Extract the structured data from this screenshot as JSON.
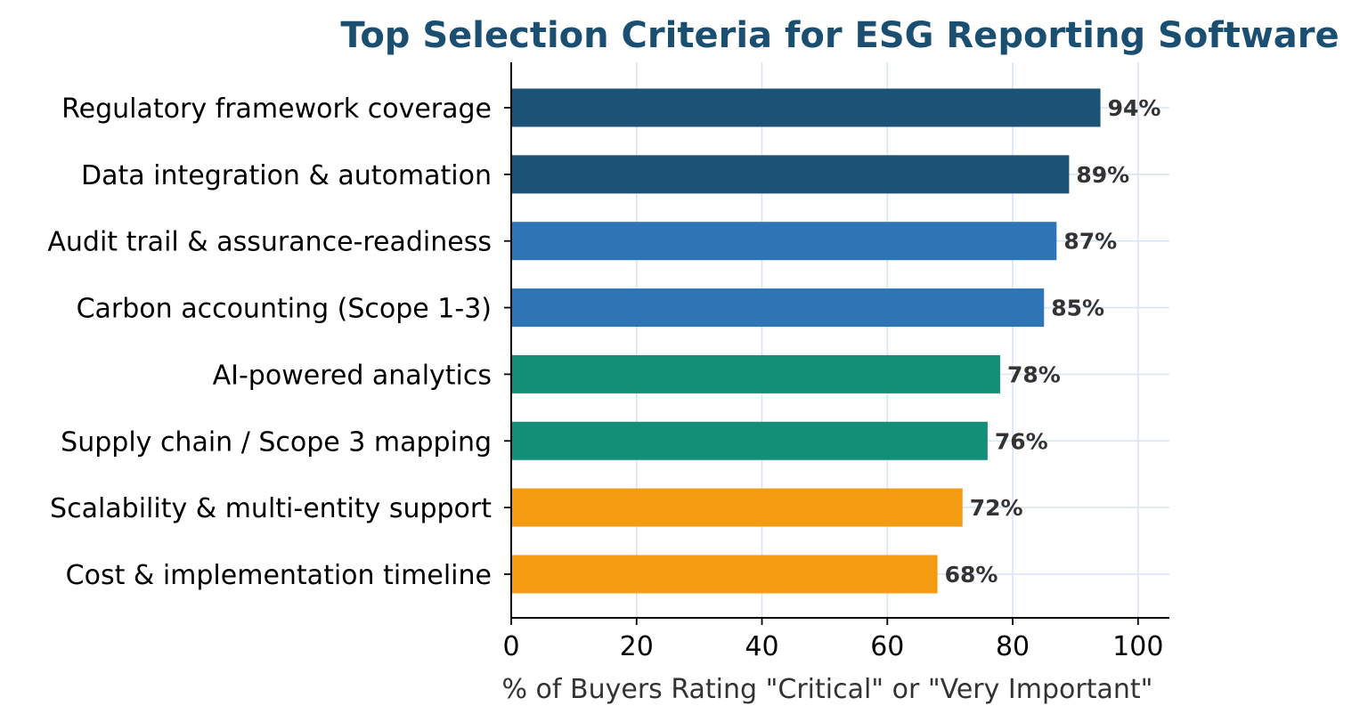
{
  "chart_data": {
    "type": "bar",
    "orientation": "horizontal",
    "title": "Top Selection Criteria for ESG Reporting Software",
    "xlabel": "% of Buyers Rating \"Critical\" or \"Very Important\"",
    "ylabel": "",
    "xlim": [
      0,
      105
    ],
    "x_ticks": [
      0,
      20,
      40,
      60,
      80,
      100
    ],
    "grid": true,
    "legend": "none",
    "value_suffix": "%",
    "categories": [
      "Regulatory framework coverage",
      "Data integration & automation",
      "Audit trail & assurance-readiness",
      "Carbon accounting (Scope 1-3)",
      "AI-powered analytics",
      "Supply chain / Scope 3 mapping",
      "Scalability & multi-entity support",
      "Cost & implementation timeline"
    ],
    "values": [
      94,
      89,
      87,
      85,
      78,
      76,
      72,
      68
    ],
    "bar_colors": [
      "#1b5276",
      "#1b5276",
      "#2e75b6",
      "#2e75b6",
      "#148f77",
      "#148f77",
      "#f39c12",
      "#f39c12"
    ]
  },
  "colors": {
    "title": "#1b4f72",
    "axis": "#000000",
    "grid": "#dbe4f5",
    "value_label": "#333333"
  }
}
